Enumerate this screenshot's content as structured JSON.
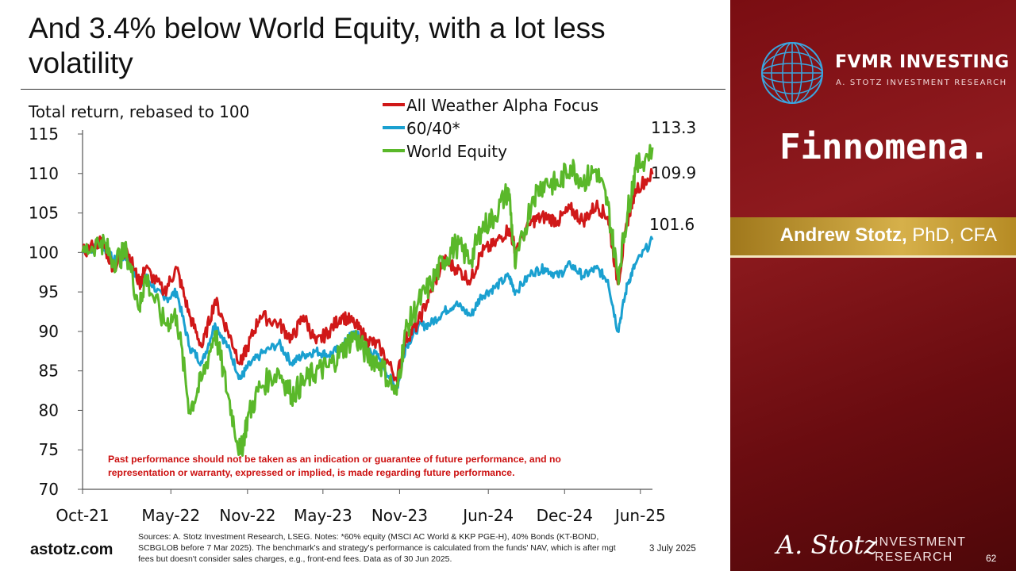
{
  "slide": {
    "title": "And 3.4% below World Equity, with a lot less volatility",
    "page_number": "62",
    "date": "3 July 2025",
    "brand_url": "astotz.com",
    "sources": "Sources: A. Stotz Investment Research, LSEG. Notes: *60% equity (MSCI AC World & KKP PGE-H), 40% Bonds (KT-BOND, SCBGLOB before 7 Mar 2025). The benchmark's and strategy's performance is calculated from the funds' NAV, which is after mgt fees but doesn't consider sales charges, e.g., front-end fees. Data as of 30 Jun 2025.",
    "disclaimer": "Past performance should not be taken as an indication or guarantee of future performance, and no representation or warranty, expressed or implied, is made regarding future performance."
  },
  "sidebar": {
    "fvmr_title": "FVMR INVESTING",
    "fvmr_subtitle": "A. STOTZ INVESTMENT RESEARCH",
    "partner": "Finnomena.",
    "presenter_name": "Andrew Stotz,",
    "presenter_credentials": " PhD, CFA",
    "footer_signature": "A. Stotz",
    "footer_line1": "INVESTMENT",
    "footer_line2": "RESEARCH"
  },
  "colors": {
    "all_weather": "#d01818",
    "sixty_forty": "#1aa0d0",
    "world_equity": "#5ab82a",
    "panel": "#7a0d12",
    "gold": "#c9a23a"
  },
  "chart_data": {
    "type": "line",
    "title": "Total return, rebased to 100",
    "ylim": [
      70,
      115
    ],
    "yticks": [
      115,
      110,
      105,
      100,
      95,
      90,
      85,
      80,
      75,
      70
    ],
    "xlim": [
      "Oct-21",
      "Jun-25"
    ],
    "xticks": [
      "Oct-21",
      "May-22",
      "Nov-22",
      "May-23",
      "Nov-23",
      "Jun-24",
      "Dec-24",
      "Jun-25"
    ],
    "xtick_dates": [
      "2021-10-01",
      "2022-05-01",
      "2022-11-01",
      "2023-05-01",
      "2023-11-01",
      "2024-06-01",
      "2024-12-01",
      "2025-06-01"
    ],
    "legend_position": "top",
    "series": [
      {
        "name": "All Weather Alpha Focus",
        "color_key": "all_weather",
        "end_label": "109.9",
        "points": [
          [
            "2021-10-01",
            100.0
          ],
          [
            "2021-11-15",
            101.5
          ],
          [
            "2021-12-15",
            98.0
          ],
          [
            "2022-01-15",
            100.5
          ],
          [
            "2022-02-15",
            96.0
          ],
          [
            "2022-03-01",
            98.0
          ],
          [
            "2022-04-15",
            95.0
          ],
          [
            "2022-05-15",
            98.0
          ],
          [
            "2022-06-15",
            92.0
          ],
          [
            "2022-07-15",
            88.0
          ],
          [
            "2022-08-15",
            94.0
          ],
          [
            "2022-09-15",
            90.0
          ],
          [
            "2022-10-15",
            86.0
          ],
          [
            "2022-11-01",
            88.0
          ],
          [
            "2022-12-01",
            92.0
          ],
          [
            "2023-01-15",
            91.0
          ],
          [
            "2023-02-15",
            89.0
          ],
          [
            "2023-03-15",
            92.0
          ],
          [
            "2023-04-15",
            88.5
          ],
          [
            "2023-05-15",
            90.0
          ],
          [
            "2023-06-15",
            92.0
          ],
          [
            "2023-07-15",
            91.0
          ],
          [
            "2023-08-15",
            89.0
          ],
          [
            "2023-09-15",
            88.0
          ],
          [
            "2023-10-25",
            84.0
          ],
          [
            "2023-11-15",
            89.0
          ],
          [
            "2023-12-15",
            91.0
          ],
          [
            "2024-01-15",
            95.0
          ],
          [
            "2024-02-15",
            99.0
          ],
          [
            "2024-03-15",
            98.0
          ],
          [
            "2024-04-20",
            96.5
          ],
          [
            "2024-05-15",
            100.0
          ],
          [
            "2024-06-15",
            101.0
          ],
          [
            "2024-07-20",
            103.0
          ],
          [
            "2024-08-05",
            100.5
          ],
          [
            "2024-09-15",
            104.0
          ],
          [
            "2024-10-15",
            104.5
          ],
          [
            "2024-11-15",
            104.0
          ],
          [
            "2024-12-15",
            105.5
          ],
          [
            "2025-01-15",
            104.0
          ],
          [
            "2025-02-15",
            106.0
          ],
          [
            "2025-03-15",
            104.5
          ],
          [
            "2025-04-08",
            96.0
          ],
          [
            "2025-05-01",
            104.0
          ],
          [
            "2025-05-20",
            108.0
          ],
          [
            "2025-06-30",
            109.9
          ]
        ]
      },
      {
        "name": "60/40*",
        "color_key": "sixty_forty",
        "end_label": "101.6",
        "points": [
          [
            "2021-10-01",
            100.0
          ],
          [
            "2021-11-15",
            101.0
          ],
          [
            "2021-12-15",
            99.0
          ],
          [
            "2022-01-15",
            99.5
          ],
          [
            "2022-02-15",
            96.0
          ],
          [
            "2022-03-01",
            97.0
          ],
          [
            "2022-04-15",
            94.0
          ],
          [
            "2022-05-15",
            95.0
          ],
          [
            "2022-06-15",
            88.0
          ],
          [
            "2022-07-15",
            86.0
          ],
          [
            "2022-08-15",
            91.0
          ],
          [
            "2022-09-15",
            88.0
          ],
          [
            "2022-10-15",
            84.0
          ],
          [
            "2022-11-01",
            85.5
          ],
          [
            "2022-12-01",
            87.0
          ],
          [
            "2023-01-15",
            88.5
          ],
          [
            "2023-02-15",
            86.0
          ],
          [
            "2023-03-15",
            87.0
          ],
          [
            "2023-04-15",
            87.5
          ],
          [
            "2023-05-15",
            87.0
          ],
          [
            "2023-06-15",
            88.0
          ],
          [
            "2023-07-15",
            90.0
          ],
          [
            "2023-08-15",
            88.0
          ],
          [
            "2023-09-15",
            86.5
          ],
          [
            "2023-10-25",
            82.5
          ],
          [
            "2023-11-15",
            88.0
          ],
          [
            "2023-12-15",
            90.5
          ],
          [
            "2024-01-15",
            91.0
          ],
          [
            "2024-02-15",
            92.5
          ],
          [
            "2024-03-15",
            93.5
          ],
          [
            "2024-04-20",
            92.0
          ],
          [
            "2024-05-15",
            94.5
          ],
          [
            "2024-06-15",
            95.5
          ],
          [
            "2024-07-20",
            97.0
          ],
          [
            "2024-08-05",
            95.0
          ],
          [
            "2024-09-15",
            97.5
          ],
          [
            "2024-10-15",
            98.0
          ],
          [
            "2024-11-15",
            97.0
          ],
          [
            "2024-12-15",
            98.5
          ],
          [
            "2025-01-15",
            97.0
          ],
          [
            "2025-02-15",
            98.0
          ],
          [
            "2025-03-15",
            96.5
          ],
          [
            "2025-04-08",
            90.0
          ],
          [
            "2025-05-01",
            96.0
          ],
          [
            "2025-05-20",
            98.5
          ],
          [
            "2025-06-30",
            101.6
          ]
        ]
      },
      {
        "name": "World Equity",
        "color_key": "world_equity",
        "end_label": "113.3",
        "points": [
          [
            "2021-10-01",
            100.0
          ],
          [
            "2021-11-15",
            101.5
          ],
          [
            "2021-12-15",
            99.0
          ],
          [
            "2022-01-15",
            100.0
          ],
          [
            "2022-02-15",
            93.0
          ],
          [
            "2022-03-01",
            97.0
          ],
          [
            "2022-04-15",
            91.0
          ],
          [
            "2022-05-15",
            92.0
          ],
          [
            "2022-06-15",
            80.0
          ],
          [
            "2022-07-15",
            84.0
          ],
          [
            "2022-08-15",
            90.0
          ],
          [
            "2022-09-15",
            82.0
          ],
          [
            "2022-10-15",
            74.5
          ],
          [
            "2022-11-01",
            79.0
          ],
          [
            "2022-12-01",
            83.0
          ],
          [
            "2023-01-15",
            85.0
          ],
          [
            "2023-02-15",
            82.0
          ],
          [
            "2023-03-15",
            83.5
          ],
          [
            "2023-04-15",
            85.0
          ],
          [
            "2023-05-15",
            85.5
          ],
          [
            "2023-06-15",
            87.5
          ],
          [
            "2023-07-15",
            89.5
          ],
          [
            "2023-08-15",
            87.0
          ],
          [
            "2023-09-15",
            86.0
          ],
          [
            "2023-10-25",
            82.0
          ],
          [
            "2023-11-15",
            90.0
          ],
          [
            "2023-12-15",
            93.5
          ],
          [
            "2024-01-15",
            96.0
          ],
          [
            "2024-02-15",
            99.0
          ],
          [
            "2024-03-15",
            101.0
          ],
          [
            "2024-04-20",
            99.0
          ],
          [
            "2024-05-15",
            103.0
          ],
          [
            "2024-06-15",
            104.5
          ],
          [
            "2024-07-20",
            108.0
          ],
          [
            "2024-08-05",
            98.0
          ],
          [
            "2024-09-15",
            107.0
          ],
          [
            "2024-10-15",
            109.0
          ],
          [
            "2024-11-15",
            108.5
          ],
          [
            "2024-12-15",
            111.0
          ],
          [
            "2025-01-15",
            109.0
          ],
          [
            "2025-02-15",
            110.5
          ],
          [
            "2025-03-15",
            106.0
          ],
          [
            "2025-04-08",
            97.0
          ],
          [
            "2025-05-01",
            105.0
          ],
          [
            "2025-05-20",
            110.5
          ],
          [
            "2025-06-30",
            113.3
          ]
        ]
      }
    ]
  }
}
